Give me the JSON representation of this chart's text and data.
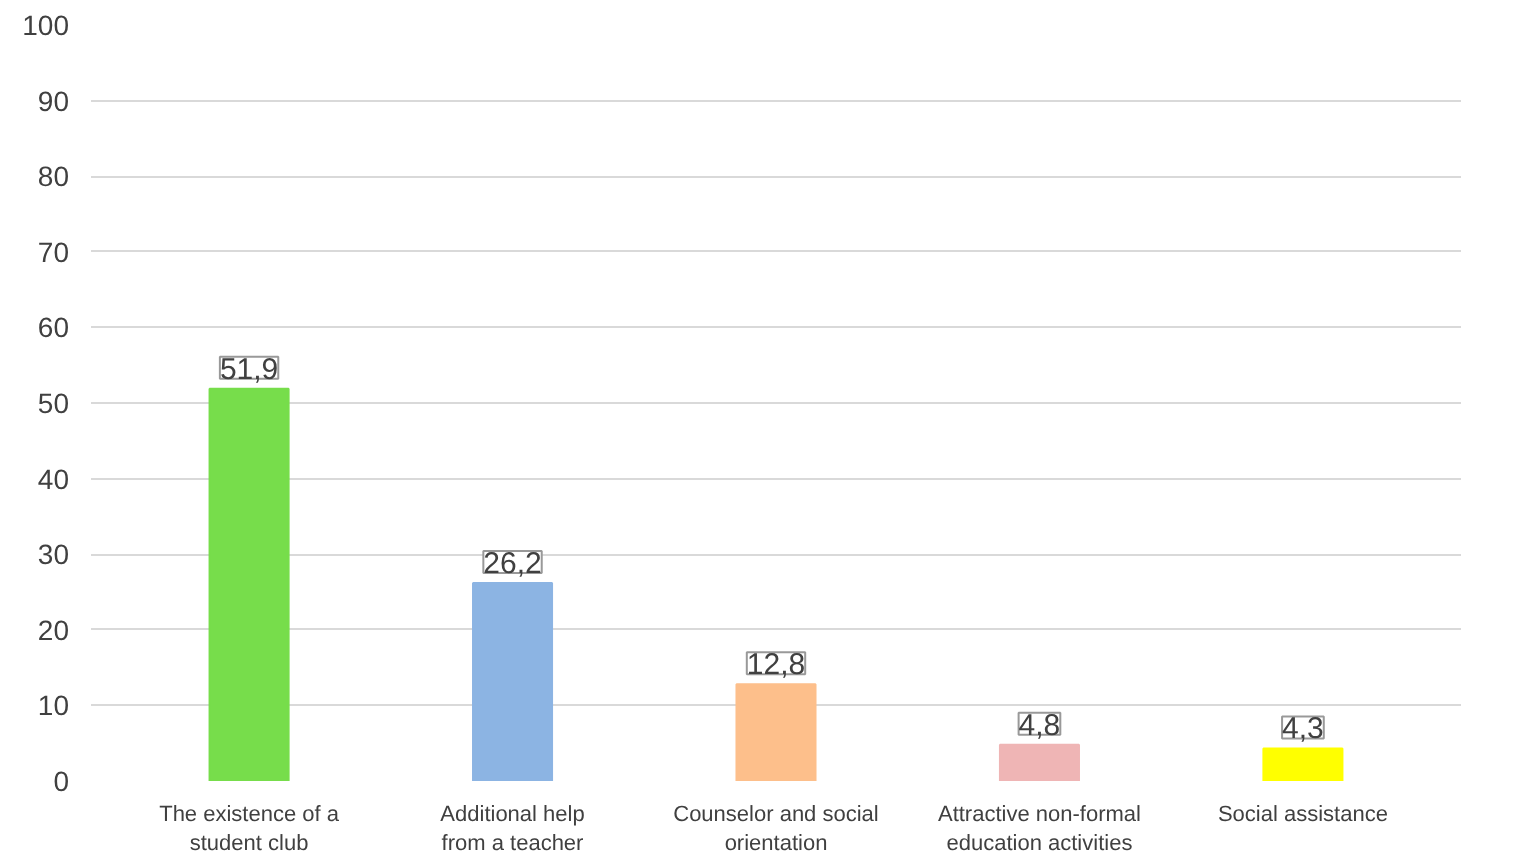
{
  "chart_data": {
    "type": "bar",
    "categories": [
      "The existence of a\nstudent club",
      "Additional help\nfrom a teacher",
      "Counselor and social\norientation",
      "Attractive non-formal\neducation activities",
      "Social assistance"
    ],
    "values": [
      51.9,
      26.2,
      12.8,
      4.8,
      4.3
    ],
    "colors": [
      "#77dd4b",
      "#8cb4e3",
      "#fdbf8b",
      "#efb5b5",
      "#ffff00"
    ],
    "value_labels": [
      "51,9",
      "26,2",
      "12,8",
      "4,8",
      "4,3"
    ],
    "ylim": [
      0,
      100
    ],
    "yticks": [
      0,
      10,
      20,
      30,
      40,
      50,
      60,
      70,
      80,
      90,
      100
    ],
    "grid": "y"
  }
}
